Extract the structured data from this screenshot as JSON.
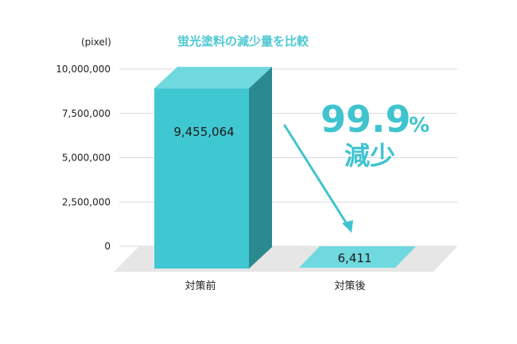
{
  "chart_data": {
    "type": "bar",
    "title": "蛍光塗料の減少量を比較",
    "unit_label": "(pixel)",
    "categories": [
      "対策前",
      "対策後"
    ],
    "values": [
      9455064,
      6411
    ],
    "value_labels": [
      "9,455,064",
      "6,411"
    ],
    "ylim": [
      0,
      10000000
    ],
    "yticks": [
      0,
      2500000,
      5000000,
      7500000,
      10000000
    ],
    "ytick_labels": [
      "0",
      "2,500,000",
      "5,000,000",
      "7,500,000",
      "10,000,000"
    ],
    "grid": true,
    "annotation": {
      "number": "99.9",
      "percent": "%",
      "text": "減少"
    }
  },
  "colors": {
    "title": "#4ec9d3",
    "bar_front": "#40c8d2",
    "bar_top": "#6fd9df",
    "bar_side": "#2a8a8f",
    "small_bar": "#6fd9df",
    "floor": "#e6e6e6",
    "grid": "#d9d9d9",
    "accent": "#3fc4cf"
  }
}
